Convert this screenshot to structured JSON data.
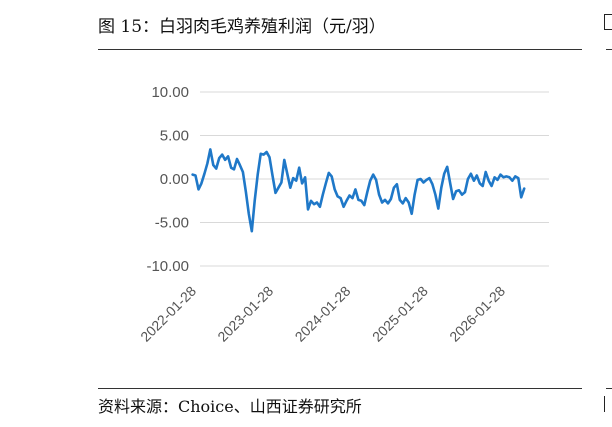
{
  "header": {
    "title": "图 15：白羽肉毛鸡养殖利润（元/羽）"
  },
  "footer": {
    "source": "资料来源：Choice、山西证券研究所"
  },
  "colors": {
    "line": "#1f78c8",
    "grid": "#d9d9d9",
    "text": "#555555"
  },
  "chart_data": {
    "type": "line",
    "title": "",
    "xlabel": "",
    "ylabel": "",
    "ylim": [
      -10,
      10
    ],
    "yticks": [
      "10.00",
      "5.00",
      "0.00",
      "-5.00",
      "-10.00"
    ],
    "xticks": [
      "2022-01-28",
      "2023-01-28",
      "2024-01-28",
      "2025-01-28",
      "2026-01-28"
    ],
    "grid": true,
    "legend": "none",
    "series": [
      {
        "name": "",
        "x": [
          "2022-01-07",
          "2022-01-21",
          "2022-02-04",
          "2022-02-18",
          "2022-03-04",
          "2022-03-18",
          "2022-04-01",
          "2022-04-15",
          "2022-04-29",
          "2022-05-13",
          "2022-05-27",
          "2022-06-10",
          "2022-06-24",
          "2022-07-08",
          "2022-07-22",
          "2022-08-05",
          "2022-08-19",
          "2022-09-02",
          "2022-09-16",
          "2022-09-30",
          "2022-10-14",
          "2022-10-28",
          "2022-11-11",
          "2022-11-25",
          "2022-12-09",
          "2022-12-23",
          "2023-01-06",
          "2023-01-20",
          "2023-02-03",
          "2023-02-17",
          "2023-03-03",
          "2023-03-17",
          "2023-03-31",
          "2023-04-14",
          "2023-04-28",
          "2023-05-12",
          "2023-05-26",
          "2023-06-09",
          "2023-06-23",
          "2023-07-07",
          "2023-07-21",
          "2023-08-04",
          "2023-08-18",
          "2023-09-01",
          "2023-09-15",
          "2023-09-29",
          "2023-10-13",
          "2023-10-27",
          "2023-11-10",
          "2023-11-24",
          "2023-12-08",
          "2023-12-22",
          "2024-01-05",
          "2024-01-19",
          "2024-02-02",
          "2024-02-16",
          "2024-03-01",
          "2024-03-15",
          "2024-03-29",
          "2024-04-12",
          "2024-04-26",
          "2024-05-10",
          "2024-05-24",
          "2024-06-07",
          "2024-06-21",
          "2024-07-05",
          "2024-07-19",
          "2024-08-02",
          "2024-08-16",
          "2024-08-30",
          "2024-09-13",
          "2024-09-27",
          "2024-10-11",
          "2024-10-25",
          "2024-11-08",
          "2024-11-22",
          "2024-12-06",
          "2024-12-20",
          "2025-01-03",
          "2025-01-17",
          "2025-01-31",
          "2025-02-14",
          "2025-02-28",
          "2025-03-14",
          "2025-03-28",
          "2025-04-11",
          "2025-04-25",
          "2025-05-09",
          "2025-05-23",
          "2025-06-06",
          "2025-06-20",
          "2025-07-04",
          "2025-07-18",
          "2025-08-01",
          "2025-08-15",
          "2025-08-29",
          "2025-09-12",
          "2025-09-26",
          "2025-10-10",
          "2025-10-24",
          "2025-11-07",
          "2025-11-21",
          "2025-12-05",
          "2025-12-19",
          "2026-01-02",
          "2026-01-16",
          "2026-01-30",
          "2026-02-13",
          "2026-02-27",
          "2026-03-13",
          "2026-03-27",
          "2026-04-10",
          "2026-04-24"
        ],
        "values": [
          0.5,
          0.4,
          -1.2,
          -0.5,
          0.6,
          1.8,
          3.4,
          1.6,
          1.2,
          2.4,
          2.8,
          2.2,
          2.6,
          1.3,
          1.1,
          2.3,
          1.6,
          0.8,
          -1.5,
          -4.0,
          -6.0,
          -2.5,
          0.5,
          2.9,
          2.8,
          3.1,
          2.5,
          0.4,
          -1.6,
          -1.0,
          -0.4,
          2.2,
          0.6,
          -1.0,
          0.1,
          -0.2,
          1.3,
          -0.5,
          0.2,
          -3.5,
          -2.5,
          -2.9,
          -2.7,
          -3.2,
          -1.8,
          -0.5,
          0.7,
          0.3,
          -1.2,
          -2.0,
          -2.2,
          -3.2,
          -2.5,
          -1.9,
          -2.2,
          -1.2,
          -2.4,
          -2.5,
          -3.0,
          -1.5,
          -0.2,
          0.5,
          -0.1,
          -1.8,
          -2.7,
          -2.4,
          -2.8,
          -2.3,
          -1.0,
          -0.6,
          -2.4,
          -2.8,
          -2.2,
          -2.7,
          -4.0,
          -1.8,
          -0.1,
          0.0,
          -0.4,
          -0.1,
          0.1,
          -0.6,
          -1.8,
          -3.4,
          -1.0,
          0.6,
          1.4,
          -0.5,
          -2.3,
          -1.4,
          -1.3,
          -1.8,
          -1.5,
          0.0,
          0.6,
          -0.2,
          0.4,
          -0.5,
          -0.8,
          0.8,
          -0.2,
          -0.8,
          0.2,
          -0.1,
          0.5,
          0.2,
          0.3,
          0.2,
          -0.2,
          0.3,
          0.1,
          -2.1,
          -1.1
        ]
      }
    ]
  }
}
